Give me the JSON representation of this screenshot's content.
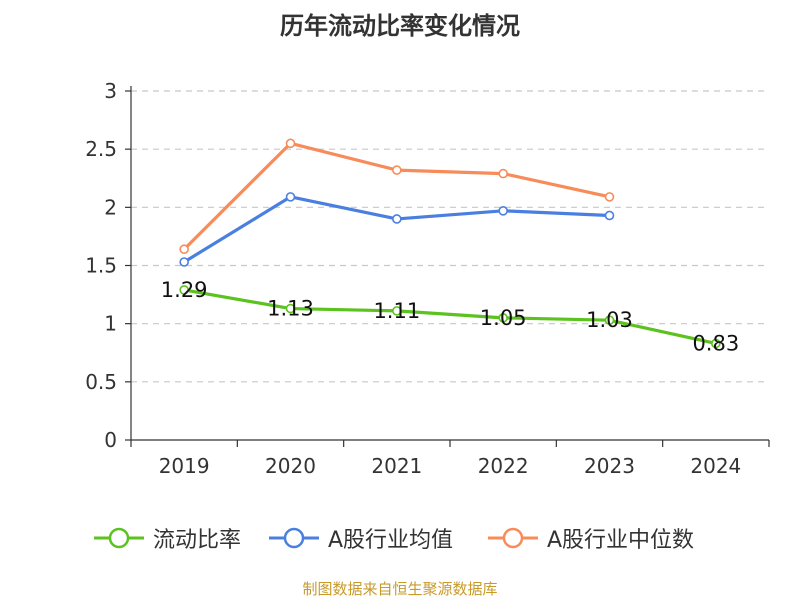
{
  "title": "历年流动比率变化情况",
  "source": "制图数据来自恒生聚源数据库",
  "chart_data": {
    "type": "line",
    "title": "历年流动比率变化情况",
    "categories": [
      "2019",
      "2020",
      "2021",
      "2022",
      "2023",
      "2024"
    ],
    "ylim": [
      0,
      3
    ],
    "yticks": [
      "0",
      "0.5",
      "1",
      "1.5",
      "2",
      "2.5",
      "3"
    ],
    "grid": true,
    "legend_position": "bottom",
    "series": [
      {
        "name": "流动比率",
        "color": "#5cc21f",
        "values": [
          1.29,
          1.13,
          1.11,
          1.05,
          1.03,
          0.83
        ],
        "labels": [
          "1.29",
          "1.13",
          "1.11",
          "1.05",
          "1.03",
          "0.83"
        ]
      },
      {
        "name": "A股行业均值",
        "color": "#4a7fe0",
        "values": [
          1.53,
          2.09,
          1.9,
          1.97,
          1.93,
          null
        ]
      },
      {
        "name": "A股行业中位数",
        "color": "#f78c5a",
        "values": [
          1.64,
          2.55,
          2.32,
          2.29,
          2.09,
          null
        ]
      }
    ]
  }
}
